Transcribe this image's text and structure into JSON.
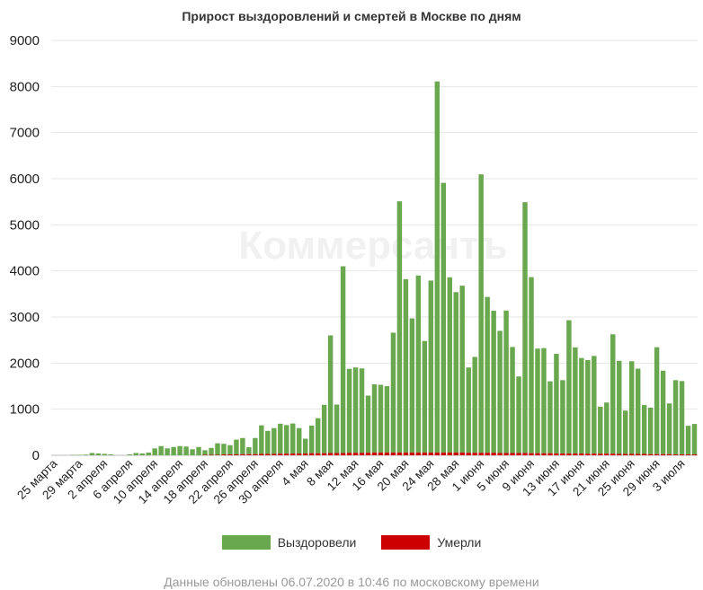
{
  "chart_data": {
    "type": "bar",
    "stacked": true,
    "title": "Прирост выздоровлений и смертей в Москве по дням",
    "watermark": "Коммерсантъ",
    "ylim": [
      0,
      9000
    ],
    "yticks": [
      0,
      1000,
      2000,
      3000,
      4000,
      5000,
      6000,
      7000,
      8000,
      9000
    ],
    "grid": true,
    "legend_placement": "bottom",
    "x_tick_labels": [
      "25 марта",
      "29 марта",
      "2 апреля",
      "6 апреля",
      "10 апреля",
      "14 апреля",
      "18 апреля",
      "22 апреля",
      "26 апреля",
      "30 апреля",
      "4 мая",
      "8 мая",
      "12 мая",
      "16 мая",
      "20 мая",
      "24 мая",
      "28 мая",
      "1 июня",
      "5 июня",
      "9 июня",
      "13 июня",
      "17 июня",
      "21 июня",
      "25 июня",
      "29 июня",
      "3 июля"
    ],
    "x_tick_every": 4,
    "series": [
      {
        "name": "Выздоровели",
        "color": "#6aa84f",
        "values": [
          0,
          0,
          0,
          10,
          10,
          15,
          50,
          40,
          30,
          20,
          0,
          0,
          20,
          50,
          40,
          60,
          150,
          200,
          150,
          180,
          200,
          190,
          130,
          180,
          100,
          150,
          250,
          230,
          200,
          320,
          350,
          150,
          350,
          620,
          500,
          560,
          650,
          620,
          650,
          550,
          320,
          600,
          760,
          1050,
          2550,
          1050,
          4050,
          1820,
          1850,
          1830,
          1240,
          1480,
          1470,
          1440,
          2600,
          5450,
          3760,
          2910,
          3840,
          2420,
          3730,
          8050,
          5850,
          3800,
          3480,
          3620,
          1850,
          2080,
          6040,
          3380,
          3080,
          2650,
          3090,
          2300,
          1660,
          5440,
          3820,
          2270,
          2280,
          1560,
          2160,
          1590,
          2890,
          2300,
          2070,
          2030,
          2120,
          1020,
          1110,
          2590,
          2020,
          940,
          2010,
          1850,
          1060,
          1010,
          2320,
          1810,
          1100,
          1610,
          1590,
          620,
          660
        ]
      },
      {
        "name": "Умерли",
        "color": "#cc0000",
        "values": [
          0,
          0,
          0,
          0,
          0,
          0,
          0,
          0,
          0,
          0,
          0,
          0,
          0,
          0,
          0,
          0,
          0,
          0,
          0,
          0,
          0,
          0,
          0,
          0,
          10,
          10,
          10,
          20,
          20,
          20,
          25,
          25,
          25,
          30,
          30,
          30,
          35,
          35,
          40,
          40,
          40,
          45,
          45,
          45,
          50,
          50,
          50,
          55,
          55,
          55,
          55,
          60,
          60,
          60,
          60,
          60,
          60,
          60,
          60,
          60,
          60,
          60,
          60,
          60,
          60,
          60,
          55,
          55,
          55,
          55,
          55,
          50,
          50,
          50,
          50,
          50,
          45,
          45,
          45,
          45,
          40,
          40,
          40,
          40,
          40,
          35,
          35,
          35,
          35,
          35,
          30,
          30,
          30,
          30,
          30,
          25,
          25,
          25,
          25,
          20,
          20,
          20,
          20
        ]
      }
    ]
  },
  "footer_note": "Данные обновлены 06.07.2020 в 10:46 по московскому времени"
}
